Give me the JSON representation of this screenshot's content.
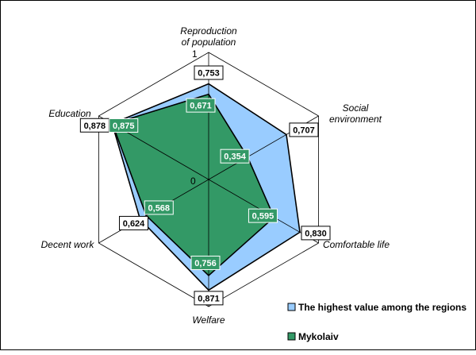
{
  "chart_data": {
    "type": "radar",
    "categories": [
      [
        "Reproduction",
        "of population"
      ],
      [
        "Social",
        "environment"
      ],
      [
        "Comfortable life"
      ],
      [
        "Welfare"
      ],
      [
        "Decent work"
      ],
      [
        "Education"
      ]
    ],
    "scale_labels": {
      "max": "1",
      "min": "0"
    },
    "rlim": [
      0,
      1
    ],
    "series": [
      {
        "name": "The highest value among the regions",
        "values": [
          0.753,
          0.707,
          0.83,
          0.871,
          0.624,
          0.878
        ],
        "labels": [
          "0,753",
          "0,707",
          "0,830",
          "0,871",
          "0,624",
          "0,878"
        ],
        "color": "#99ccff"
      },
      {
        "name": "Mykolaiv",
        "values": [
          0.671,
          0.354,
          0.595,
          0.756,
          0.568,
          0.875
        ],
        "labels": [
          "0,671",
          "0,354",
          "0,595",
          "0,756",
          "0,568",
          "0,875"
        ],
        "color": "#339966"
      }
    ],
    "grid": true,
    "legend_position": "bottom-right"
  }
}
